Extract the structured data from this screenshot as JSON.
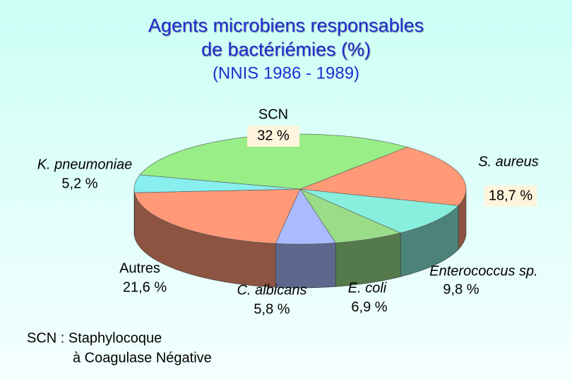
{
  "chart_data": {
    "type": "pie",
    "title": [
      "Agents microbiens responsables",
      "de bactériémies (%)",
      "(NNIS 1986 - 1989)"
    ],
    "categories": [
      "SCN",
      "S. aureus",
      "Enterococcus sp.",
      "E. coli",
      "C. albicans",
      "Autres",
      "K. pneumoniae"
    ],
    "values": [
      32,
      18.7,
      9.8,
      6.9,
      5.8,
      21.6,
      5.2
    ],
    "value_labels": [
      "32 %",
      "18,7 %",
      "9,8 %",
      "6,9 %",
      "5,8 %",
      "21,6 %",
      "5,2 %"
    ],
    "colors": [
      "#99ee88",
      "#ff9977",
      "#88eedd",
      "#99dd88",
      "#aabbff",
      "#ff9977",
      "#88eeee"
    ],
    "footnote": [
      "SCN : Staphylocoque",
      "à Coagulase Négative"
    ]
  }
}
